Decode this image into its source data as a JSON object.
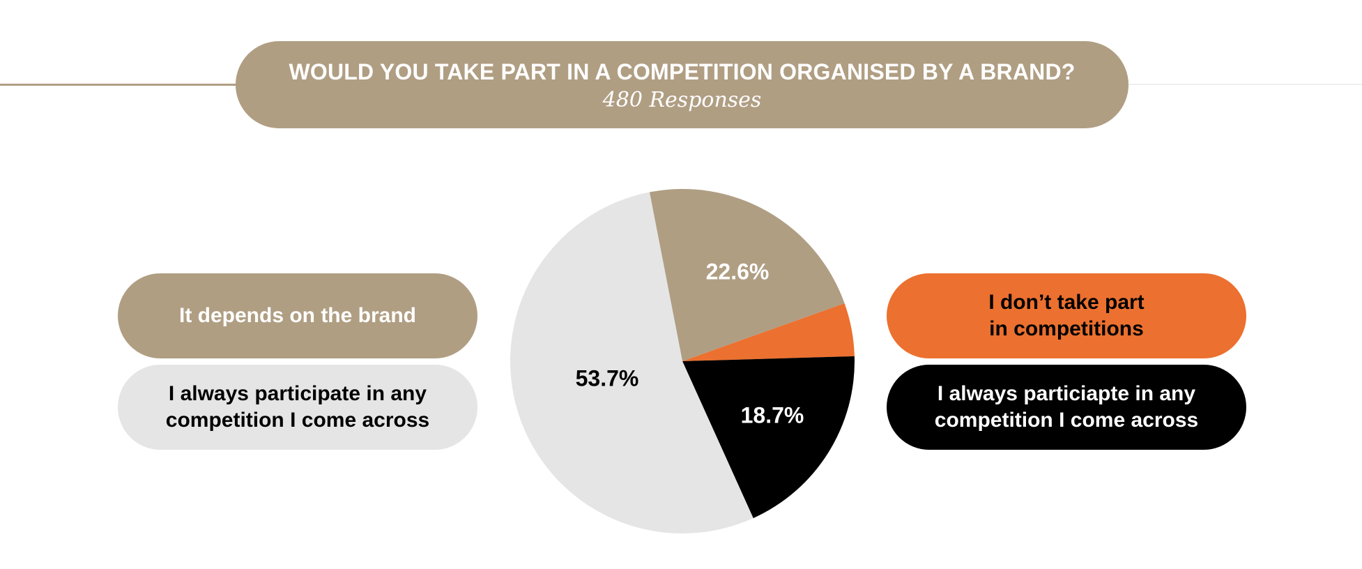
{
  "header": {
    "title": "WOULD YOU TAKE PART IN A COMPETITION ORGANISED BY A BRAND?",
    "subtitle": "480 Responses"
  },
  "legend": {
    "left": [
      {
        "label": "It depends on the brand",
        "color": "#b09e83",
        "text_color": "#ffffff"
      },
      {
        "label": "I always participate in any\ncompetition I come across",
        "color": "#e5e5e5",
        "text_color": "#000000"
      }
    ],
    "right": [
      {
        "label": "I don’t take part\nin competitions",
        "color": "#ec702f",
        "text_color": "#000000"
      },
      {
        "label": "I always particiapte in any\ncompetition I come across",
        "color": "#000000",
        "text_color": "#ffffff"
      }
    ]
  },
  "chart_data": {
    "type": "pie",
    "title": "WOULD YOU TAKE PART IN A COMPETITION ORGANISED BY A BRAND?",
    "subtitle": "480 Responses",
    "legend_position": "sides",
    "slices": [
      {
        "label": "It depends on the brand",
        "value": 22.6,
        "value_label": "22.6%",
        "color": "#b09e83",
        "label_color": "#ffffff"
      },
      {
        "label": "I don’t take part in competitions",
        "value": 5.0,
        "value_label": "",
        "color": "#ec702f",
        "label_color": "#000000"
      },
      {
        "label": "I always particiapte in any competition I come across",
        "value": 18.7,
        "value_label": "18.7%",
        "color": "#000000",
        "label_color": "#ffffff"
      },
      {
        "label": "I always participate in any competition I come across",
        "value": 53.7,
        "value_label": "53.7%",
        "color": "#e5e5e5",
        "label_color": "#000000"
      }
    ]
  }
}
